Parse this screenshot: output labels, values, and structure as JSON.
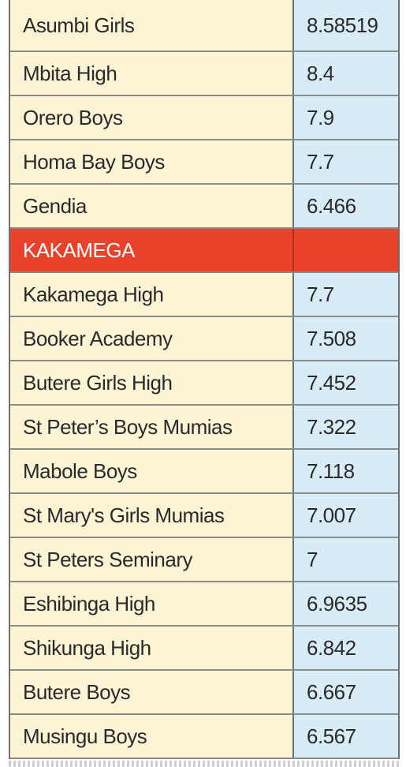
{
  "rows": [
    {
      "school": "Asumbi Girls",
      "score": "8.58519",
      "header": false
    },
    {
      "school": "Mbita High",
      "score": "8.4",
      "header": false
    },
    {
      "school": "Orero Boys",
      "score": "7.9",
      "header": false
    },
    {
      "school": "Homa Bay Boys",
      "score": "7.7",
      "header": false
    },
    {
      "school": "Gendia",
      "score": "6.466",
      "header": false
    },
    {
      "school": "KAKAMEGA",
      "score": "",
      "header": true
    },
    {
      "school": "Kakamega High",
      "score": "7.7",
      "header": false
    },
    {
      "school": "Booker Academy",
      "score": "7.508",
      "header": false
    },
    {
      "school": "Butere Girls High",
      "score": "7.452",
      "header": false
    },
    {
      "school": "St Peter’s Boys Mumias",
      "score": "7.322",
      "header": false
    },
    {
      "school": "Mabole Boys",
      "score": "7.118",
      "header": false
    },
    {
      "school": "St Mary's Girls Mumias",
      "score": "7.007",
      "header": false
    },
    {
      "school": "St Peters Seminary",
      "score": "7",
      "header": false
    },
    {
      "school": "Eshibinga High",
      "score": "6.9635",
      "header": false
    },
    {
      "school": "Shikunga High",
      "score": "6.842",
      "header": false
    },
    {
      "school": "Butere Boys",
      "score": "6.667",
      "header": false
    },
    {
      "school": "Musingu Boys",
      "score": "6.567",
      "header": false
    }
  ],
  "colors": {
    "name_bg": "#fbf5d5",
    "score_bg": "#d8ecf7",
    "header_bg": "#e8432a",
    "header_text": "#ffffff",
    "grid": "#8a8a8a"
  }
}
